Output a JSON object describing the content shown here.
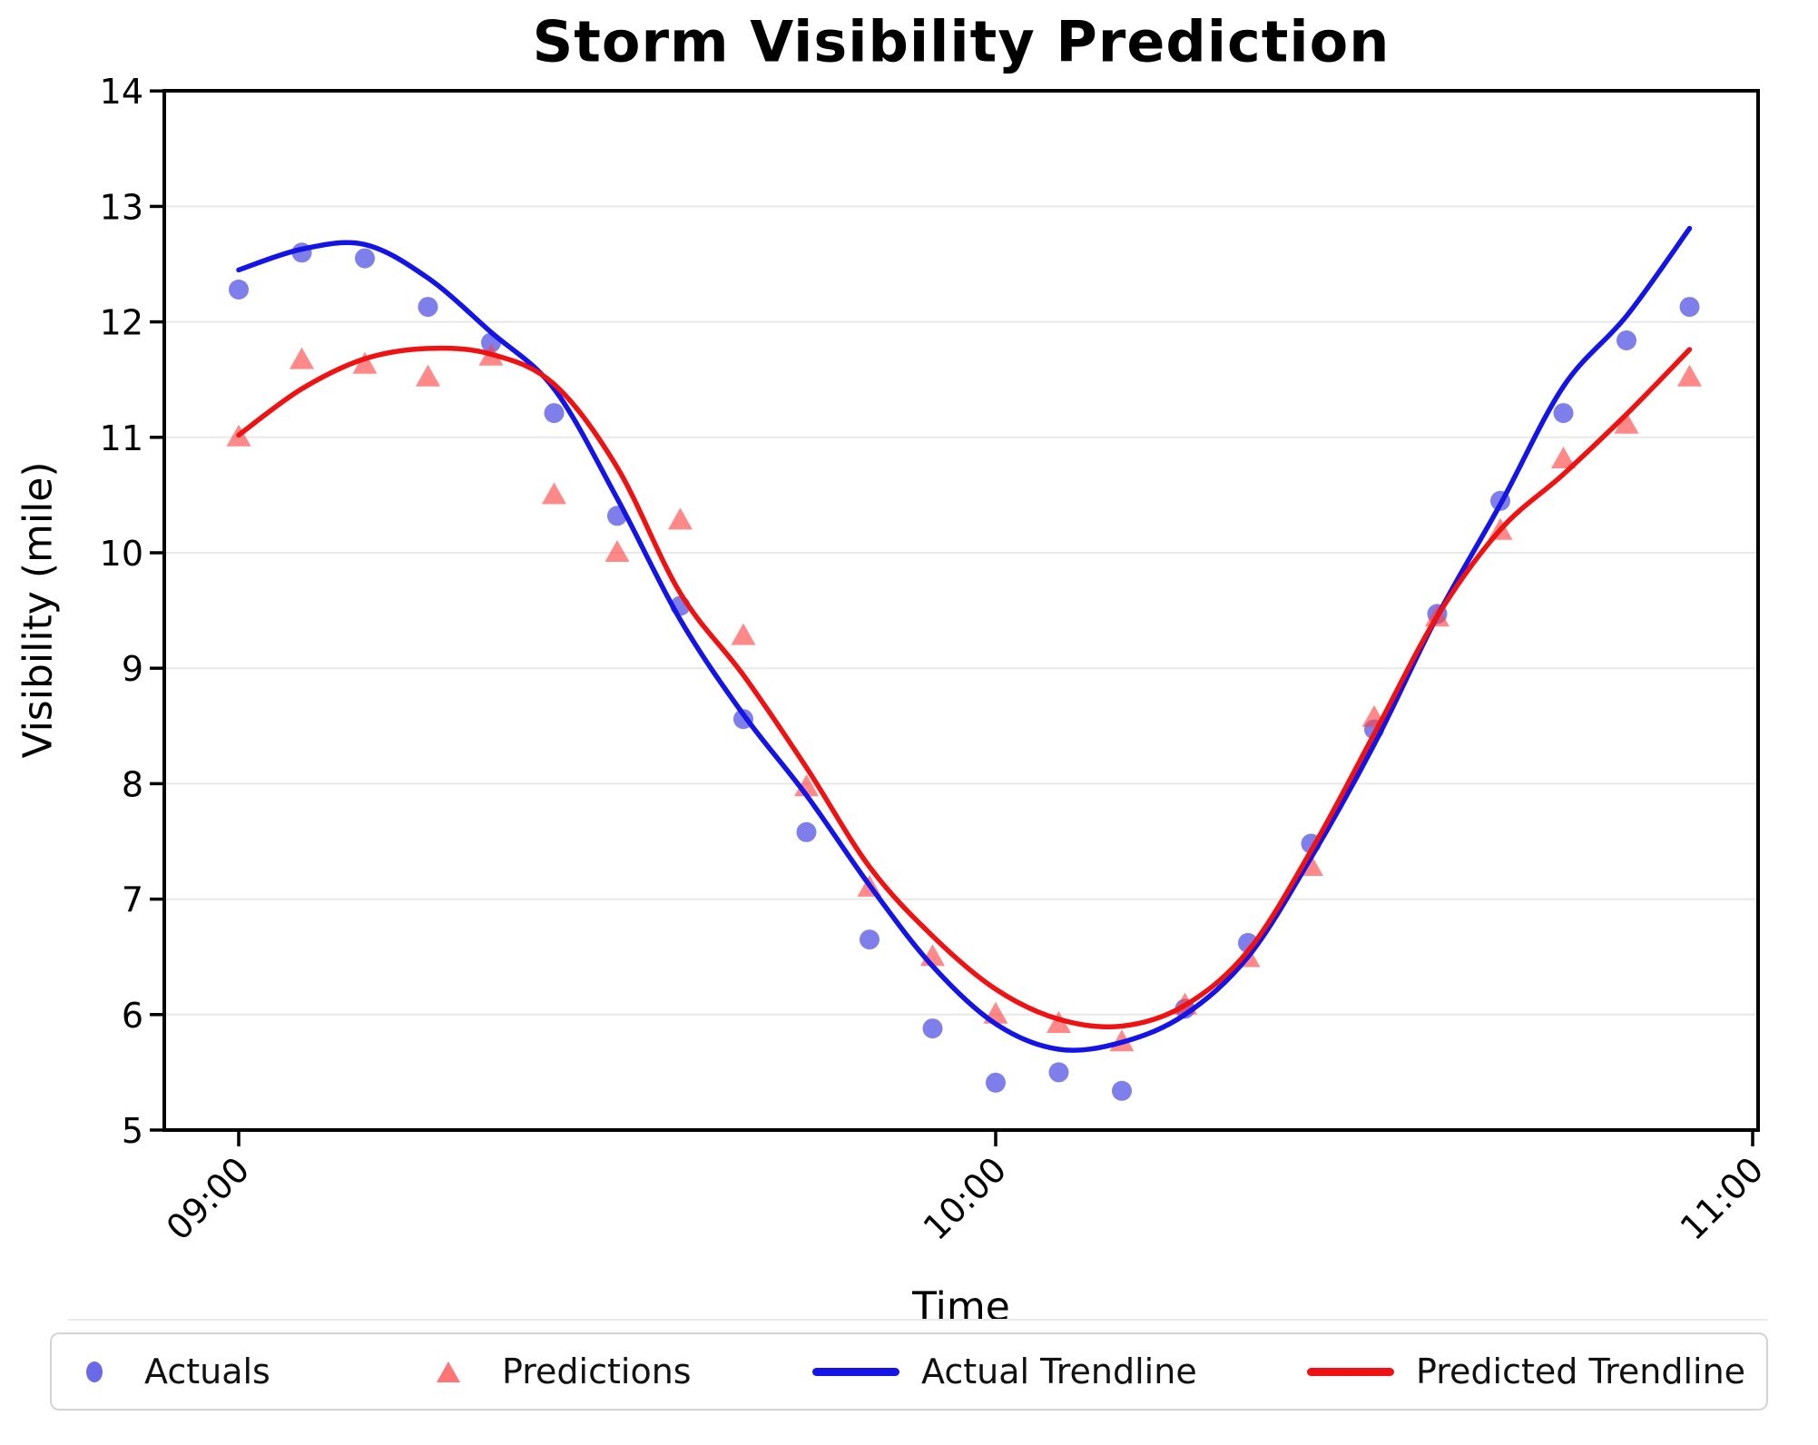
{
  "chart_data": {
    "type": "scatter",
    "title": "Storm Visibility Prediction",
    "xlabel": "Time",
    "ylabel": "Visibility (mile)",
    "x": [
      "09:00",
      "09:05",
      "09:10",
      "09:15",
      "09:20",
      "09:25",
      "09:30",
      "09:35",
      "09:40",
      "09:45",
      "09:50",
      "09:55",
      "10:00",
      "10:05",
      "10:10",
      "10:15",
      "10:20",
      "10:25",
      "10:30",
      "10:35",
      "10:40",
      "10:45",
      "10:50",
      "10:55"
    ],
    "x_tick_labels": [
      "09:00",
      "10:00",
      "11:00"
    ],
    "x_tick_positions": [
      0,
      12,
      24
    ],
    "y_ticks": [
      5,
      6,
      7,
      8,
      9,
      10,
      11,
      12,
      13,
      14
    ],
    "ylim": [
      5,
      14
    ],
    "grid": "horizontal",
    "legend_position": "bottom",
    "series": [
      {
        "name": "Actuals",
        "kind": "scatter",
        "marker": "circle",
        "color": "#3030e0",
        "marker_opacity": 0.62,
        "values": [
          12.28,
          12.6,
          12.55,
          12.13,
          11.82,
          11.21,
          10.32,
          9.54,
          8.56,
          7.58,
          6.65,
          5.88,
          5.41,
          5.5,
          5.34,
          6.05,
          6.62,
          7.48,
          8.47,
          9.47,
          10.45,
          11.21,
          11.84,
          12.13
        ]
      },
      {
        "name": "Predictions",
        "kind": "scatter",
        "marker": "triangle",
        "color": "#ff4040",
        "marker_opacity": 0.62,
        "values": [
          11.0,
          11.67,
          11.63,
          11.52,
          11.7,
          10.5,
          10.0,
          10.28,
          9.28,
          7.97,
          7.1,
          6.5,
          6.0,
          5.92,
          5.76,
          6.08,
          6.49,
          7.28,
          8.57,
          9.44,
          10.19,
          10.81,
          11.11,
          11.52
        ]
      },
      {
        "name": "Actual Trendline",
        "kind": "line",
        "color": "#1414e6",
        "values": [
          12.45,
          12.63,
          12.67,
          12.38,
          11.91,
          11.42,
          10.47,
          9.42,
          8.6,
          7.9,
          7.12,
          6.42,
          5.92,
          5.7,
          5.76,
          6.0,
          6.5,
          7.36,
          8.34,
          9.45,
          10.42,
          11.44,
          12.05,
          12.81
        ]
      },
      {
        "name": "Predicted Trendline",
        "kind": "line",
        "color": "#ee1212",
        "values": [
          11.02,
          11.42,
          11.68,
          11.77,
          11.72,
          11.46,
          10.74,
          9.65,
          8.94,
          8.14,
          7.28,
          6.68,
          6.22,
          5.96,
          5.9,
          6.08,
          6.55,
          7.42,
          8.43,
          9.45,
          10.2,
          10.68,
          11.2,
          11.76
        ]
      }
    ],
    "colors": {
      "grid": "#e8e8e8",
      "axis": "#000000",
      "text": "#000000",
      "legend_border": "#d4d4d4",
      "background": "#ffffff"
    }
  }
}
